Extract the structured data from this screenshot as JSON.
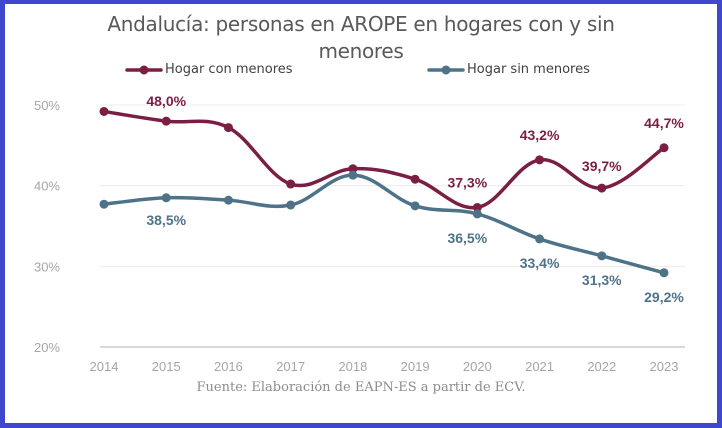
{
  "chart_data": {
    "type": "line",
    "title": "Andalucía: personas en AROPE en hogares con y sin menores",
    "title_lines": [
      "Andalucía: personas en AROPE en hogares con y sin",
      "menores"
    ],
    "x": [
      "2014",
      "2015",
      "2016",
      "2017",
      "2018",
      "2019",
      "2020",
      "2021",
      "2022",
      "2023"
    ],
    "xlabel": "",
    "ylabel": "",
    "ylim": [
      20,
      50
    ],
    "yticks": [
      20,
      30,
      40,
      50
    ],
    "ytick_labels": [
      "20%",
      "30%",
      "40%",
      "50%"
    ],
    "grid": true,
    "legend_position": "top",
    "series": [
      {
        "name": "Hogar con menores",
        "color": "#7b1e44",
        "values": [
          49.2,
          48.0,
          47.2,
          40.2,
          42.1,
          40.8,
          37.3,
          43.2,
          39.7,
          44.7
        ],
        "labels": [
          null,
          "48,0%",
          null,
          null,
          null,
          null,
          "37,3%",
          "43,2%",
          "39,7%",
          "44,7%"
        ]
      },
      {
        "name": "Hogar sin menores",
        "color": "#4e7389",
        "values": [
          37.7,
          38.5,
          38.2,
          37.6,
          41.3,
          37.5,
          36.5,
          33.4,
          31.3,
          29.2
        ],
        "labels": [
          null,
          "38,5%",
          null,
          null,
          null,
          null,
          "36,5%",
          "33,4%",
          "31,3%",
          "29,2%"
        ]
      }
    ],
    "source": "Fuente: Elaboración de EAPN-ES a partir de ECV."
  }
}
